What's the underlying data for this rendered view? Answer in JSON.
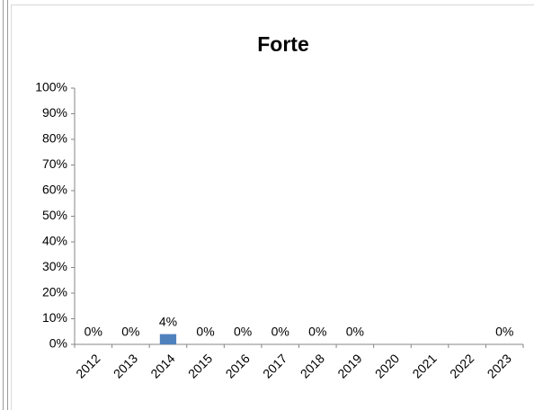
{
  "chart_data": {
    "type": "bar",
    "title": "Forte",
    "categories": [
      "2012",
      "2013",
      "2014",
      "2015",
      "2016",
      "2017",
      "2018",
      "2019",
      "2020",
      "2021",
      "2022",
      "2023"
    ],
    "values": [
      0,
      0,
      4,
      0,
      0,
      0,
      0,
      0,
      null,
      null,
      null,
      0
    ],
    "value_labels": [
      "0%",
      "0%",
      "4%",
      "0%",
      "0%",
      "0%",
      "0%",
      "0%",
      null,
      null,
      null,
      "0%"
    ],
    "color": "#4f81bd",
    "ylim": [
      0,
      100
    ],
    "yticks": [
      {
        "value": 0,
        "label": "0%"
      },
      {
        "value": 10,
        "label": "10%"
      },
      {
        "value": 20,
        "label": "20%"
      },
      {
        "value": 30,
        "label": "30%"
      },
      {
        "value": 40,
        "label": "40%"
      },
      {
        "value": 50,
        "label": "50%"
      },
      {
        "value": 60,
        "label": "60%"
      },
      {
        "value": 70,
        "label": "70%"
      },
      {
        "value": 80,
        "label": "80%"
      },
      {
        "value": 90,
        "label": "90%"
      },
      {
        "value": 100,
        "label": "100%"
      }
    ],
    "grid": false
  }
}
